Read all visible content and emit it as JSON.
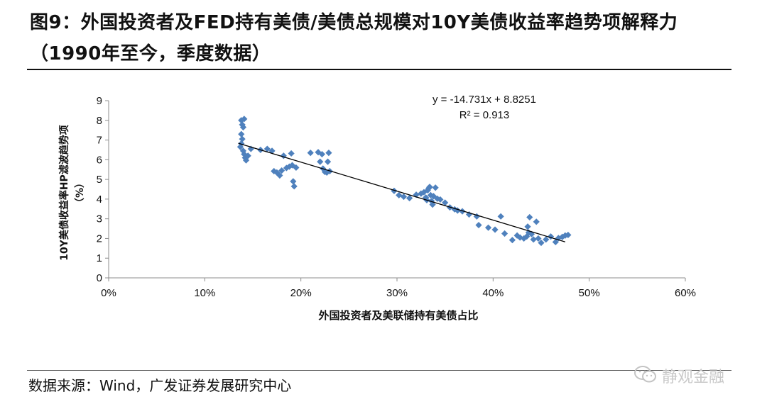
{
  "header": {
    "title_line1": "图9：外国投资者及FED持有美债/美债总规模对10Y美债收益率趋势项解释力",
    "title_line2": "（1990年至今，季度数据）"
  },
  "footer": {
    "source": "数据来源：Wind，广发证券发展研究中心",
    "watermark_text": "静观金融",
    "watermark_icon": "wechat-icon"
  },
  "chart_data": {
    "type": "scatter",
    "title": "",
    "xlabel": "外国投资者及美联储持有美债占比",
    "ylabel_line1": "10Y美债收益率HP滤波趋势项",
    "ylabel_line2": "（%）",
    "xlim": [
      0,
      0.6
    ],
    "ylim": [
      0,
      9
    ],
    "x_ticks": [
      0,
      0.1,
      0.2,
      0.3,
      0.4,
      0.5,
      0.6
    ],
    "x_tick_labels": [
      "0%",
      "10%",
      "20%",
      "30%",
      "40%",
      "50%",
      "60%"
    ],
    "y_ticks": [
      0,
      1,
      2,
      3,
      4,
      5,
      6,
      7,
      8,
      9
    ],
    "y_tick_labels": [
      "0",
      "1",
      "2",
      "3",
      "4",
      "5",
      "6",
      "7",
      "8",
      "9"
    ],
    "grid": false,
    "marker": "diamond",
    "point_color": "#4f81bd",
    "trendline_color": "#000000",
    "trendline": {
      "slope": -14.731,
      "intercept": 8.8251,
      "x_range": [
        0.135,
        0.475
      ]
    },
    "equation_label": "y = -14.731x + 8.8251",
    "r2_label": "R² = 0.913",
    "points": [
      [
        0.138,
        8.0
      ],
      [
        0.141,
        8.07
      ],
      [
        0.139,
        7.78
      ],
      [
        0.14,
        7.65
      ],
      [
        0.138,
        7.3
      ],
      [
        0.139,
        7.05
      ],
      [
        0.138,
        6.82
      ],
      [
        0.137,
        6.65
      ],
      [
        0.14,
        6.45
      ],
      [
        0.141,
        6.28
      ],
      [
        0.142,
        6.1
      ],
      [
        0.143,
        5.97
      ],
      [
        0.145,
        6.2
      ],
      [
        0.148,
        6.55
      ],
      [
        0.158,
        6.5
      ],
      [
        0.165,
        6.55
      ],
      [
        0.17,
        6.45
      ],
      [
        0.172,
        5.42
      ],
      [
        0.175,
        5.35
      ],
      [
        0.178,
        5.2
      ],
      [
        0.18,
        5.45
      ],
      [
        0.182,
        6.2
      ],
      [
        0.185,
        5.58
      ],
      [
        0.188,
        5.65
      ],
      [
        0.19,
        6.32
      ],
      [
        0.191,
        5.72
      ],
      [
        0.192,
        4.9
      ],
      [
        0.193,
        4.65
      ],
      [
        0.195,
        5.6
      ],
      [
        0.21,
        6.35
      ],
      [
        0.218,
        6.38
      ],
      [
        0.22,
        5.9
      ],
      [
        0.222,
        6.28
      ],
      [
        0.223,
        5.55
      ],
      [
        0.225,
        5.38
      ],
      [
        0.227,
        5.35
      ],
      [
        0.228,
        5.9
      ],
      [
        0.229,
        6.35
      ],
      [
        0.23,
        5.42
      ],
      [
        0.297,
        4.42
      ],
      [
        0.302,
        4.2
      ],
      [
        0.307,
        4.12
      ],
      [
        0.313,
        4.05
      ],
      [
        0.32,
        4.22
      ],
      [
        0.325,
        4.28
      ],
      [
        0.328,
        4.35
      ],
      [
        0.33,
        4.08
      ],
      [
        0.331,
        3.95
      ],
      [
        0.332,
        4.45
      ],
      [
        0.333,
        4.55
      ],
      [
        0.334,
        4.62
      ],
      [
        0.335,
        4.2
      ],
      [
        0.336,
        3.9
      ],
      [
        0.337,
        3.72
      ],
      [
        0.338,
        4.15
      ],
      [
        0.34,
        4.58
      ],
      [
        0.342,
        4.02
      ],
      [
        0.345,
        3.98
      ],
      [
        0.35,
        3.82
      ],
      [
        0.355,
        3.58
      ],
      [
        0.36,
        3.48
      ],
      [
        0.363,
        3.42
      ],
      [
        0.368,
        3.38
      ],
      [
        0.375,
        3.22
      ],
      [
        0.383,
        3.12
      ],
      [
        0.385,
        2.68
      ],
      [
        0.395,
        2.55
      ],
      [
        0.402,
        2.45
      ],
      [
        0.408,
        3.12
      ],
      [
        0.412,
        2.25
      ],
      [
        0.42,
        1.92
      ],
      [
        0.425,
        2.15
      ],
      [
        0.428,
        2.05
      ],
      [
        0.432,
        2.0
      ],
      [
        0.435,
        2.1
      ],
      [
        0.436,
        2.6
      ],
      [
        0.437,
        2.3
      ],
      [
        0.438,
        3.08
      ],
      [
        0.44,
        2.22
      ],
      [
        0.442,
        1.95
      ],
      [
        0.445,
        2.85
      ],
      [
        0.447,
        2.0
      ],
      [
        0.45,
        1.78
      ],
      [
        0.455,
        1.95
      ],
      [
        0.46,
        2.1
      ],
      [
        0.465,
        1.82
      ],
      [
        0.468,
        2.02
      ],
      [
        0.472,
        2.08
      ],
      [
        0.475,
        2.15
      ],
      [
        0.478,
        2.18
      ]
    ]
  }
}
